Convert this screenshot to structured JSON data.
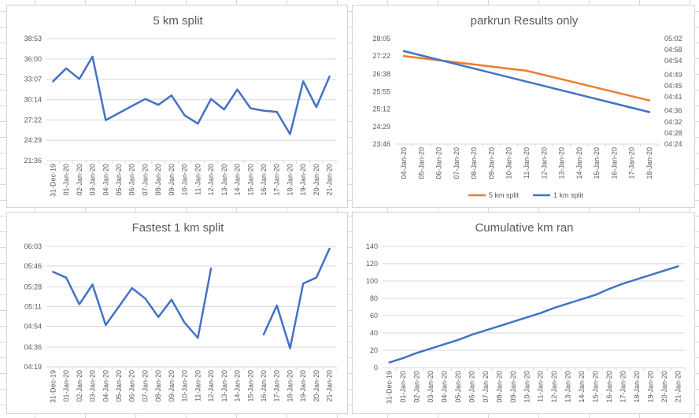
{
  "colors": {
    "blue": "#4472c4",
    "orange": "#ed7d31",
    "grid": "#d9d9d9",
    "text": "#595959"
  },
  "chart_data": [
    {
      "type": "line",
      "title": "5 km split",
      "y_ticks": [
        "38:53",
        "36:00",
        "33:07",
        "30:14",
        "27:22",
        "24:29",
        "21:36"
      ],
      "y_tick_seconds": [
        2333,
        2160,
        1987,
        1814,
        1642,
        1469,
        1296
      ],
      "ylim": [
        1296,
        2333
      ],
      "categories": [
        "31-Dec-19",
        "01-Jan-20",
        "02-Jan-20",
        "03-Jan-20",
        "04-Jan-20",
        "05-Jan-20",
        "06-Jan-20",
        "07-Jan-20",
        "08-Jan-20",
        "09-Jan-20",
        "10-Jan-20",
        "11-Jan-20",
        "12-Jan-20",
        "13-Jan-20",
        "14-Jan-20",
        "15-Jan-20",
        "16-Jan-20",
        "17-Jan-20",
        "18-Jan-20",
        "19-Jan-20",
        "20-Jan-20",
        "21-Jan-20"
      ],
      "series": [
        {
          "color": "#4472c4",
          "values": [
            1970,
            2080,
            1990,
            2180,
            1640,
            1700,
            1760,
            1820,
            1770,
            1850,
            1680,
            1610,
            1820,
            1730,
            1900,
            1740,
            1720,
            1710,
            1520,
            1970,
            1750,
            2010
          ]
        }
      ],
      "grid": true
    },
    {
      "type": "line",
      "title": "parkrun Results only",
      "y_ticks": [
        "28:05",
        "27:22",
        "26:38",
        "25:55",
        "25:12",
        "24:29",
        "23:46"
      ],
      "y_tick_seconds": [
        1685,
        1642,
        1598,
        1555,
        1512,
        1469,
        1426
      ],
      "ylim": [
        1426,
        1685
      ],
      "y2_ticks": [
        "05:02",
        "04:58",
        "04:54",
        "04:49",
        "04:45",
        "04:41",
        "04:36",
        "04:32",
        "04:28",
        "04:24"
      ],
      "y2_tick_seconds": [
        302,
        298,
        294,
        289,
        285,
        281,
        276,
        272,
        268,
        264
      ],
      "y2lim": [
        264,
        302
      ],
      "categories": [
        "04-Jan-20",
        "05-Jan-20",
        "06-Jan-20",
        "07-Jan-20",
        "08-Jan-20",
        "09-Jan-20",
        "10-Jan-20",
        "11-Jan-20",
        "12-Jan-20",
        "13-Jan-20",
        "14-Jan-20",
        "15-Jan-20",
        "16-Jan-20",
        "17-Jan-20",
        "18-Jan-20"
      ],
      "series": [
        {
          "name": "5 km split",
          "color": "#ed7d31",
          "axis": "left",
          "x": [
            "04-Jan-20",
            "11-Jan-20",
            "18-Jan-20"
          ],
          "values": [
            1642,
            1606,
            1533
          ]
        },
        {
          "name": "1 km split",
          "color": "#4472c4",
          "axis": "right",
          "x": [
            "04-Jan-20",
            "11-Jan-20",
            "18-Jan-20"
          ],
          "values": [
            297.5,
            286.5,
            275.5
          ]
        }
      ],
      "legend": "bottom",
      "grid": false
    },
    {
      "type": "line",
      "title": "Fastest 1 km split",
      "y_ticks": [
        "06:03",
        "05:46",
        "05:28",
        "05:11",
        "04:54",
        "04:36",
        "04:19"
      ],
      "y_tick_seconds": [
        363,
        346,
        328,
        311,
        294,
        276,
        259
      ],
      "ylim": [
        259,
        363
      ],
      "categories": [
        "31-Dec-19",
        "01-Jan-20",
        "02-Jan-20",
        "03-Jan-20",
        "04-Jan-20",
        "05-Jan-20",
        "06-Jan-20",
        "07-Jan-20",
        "08-Jan-20",
        "09-Jan-20",
        "10-Jan-20",
        "11-Jan-20",
        "12-Jan-20",
        "13-Jan-20",
        "14-Jan-20",
        "15-Jan-20",
        "16-Jan-20",
        "17-Jan-20",
        "18-Jan-20",
        "19-Jan-20",
        "20-Jan-20",
        "21-Jan-20"
      ],
      "series": [
        {
          "color": "#4472c4",
          "values": [
            341,
            336,
            313,
            330,
            295,
            311,
            327,
            318,
            302,
            317,
            297,
            284,
            344,
            null,
            null,
            null,
            287,
            312,
            275,
            331,
            336,
            361
          ]
        }
      ],
      "grid": true
    },
    {
      "type": "line",
      "title": "Cumulative km ran",
      "y_ticks": [
        "140",
        "120",
        "100",
        "80",
        "60",
        "40",
        "20",
        "0"
      ],
      "y_tick_seconds": [
        140,
        120,
        100,
        80,
        60,
        40,
        20,
        0
      ],
      "ylim": [
        0,
        140
      ],
      "categories": [
        "31-Dec-19",
        "01-Jan-20",
        "02-Jan-20",
        "03-Jan-20",
        "04-Jan-20",
        "05-Jan-20",
        "06-Jan-20",
        "07-Jan-20",
        "08-Jan-20",
        "09-Jan-20",
        "10-Jan-20",
        "11-Jan-20",
        "12-Jan-20",
        "13-Jan-20",
        "14-Jan-20",
        "15-Jan-20",
        "16-Jan-20",
        "17-Jan-20",
        "18-Jan-20",
        "19-Jan-20",
        "20-Jan-20",
        "21-Jan-20"
      ],
      "series": [
        {
          "color": "#4472c4",
          "values": [
            6,
            11,
            17,
            22,
            27,
            32,
            38,
            43,
            48,
            53,
            58,
            63,
            69,
            74,
            79,
            84,
            91,
            97,
            102,
            107,
            112,
            117
          ]
        }
      ],
      "grid": true
    }
  ]
}
